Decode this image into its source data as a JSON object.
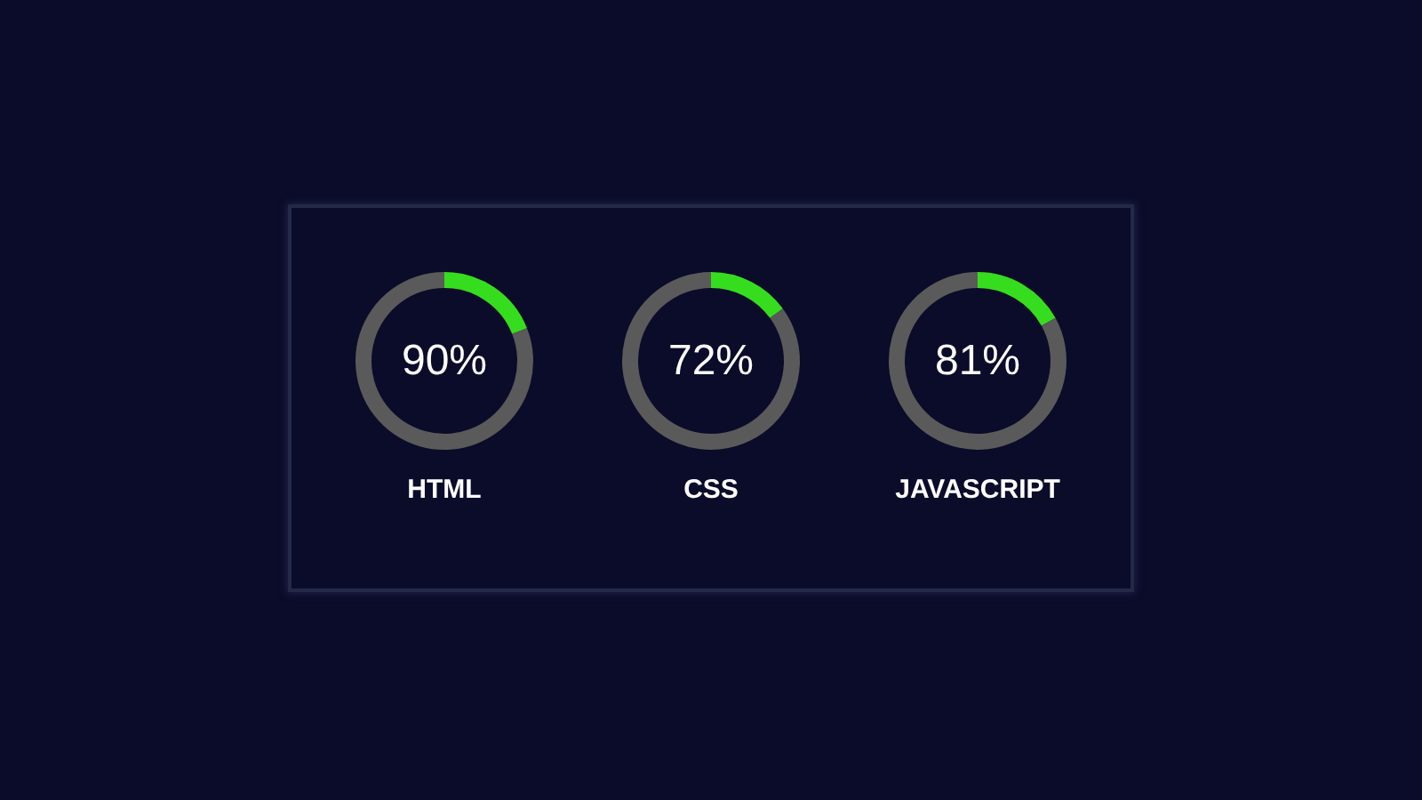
{
  "chart_data": [
    {
      "type": "donut",
      "title": "HTML",
      "categories": [
        null,
        null
      ],
      "values": [
        19,
        81
      ],
      "colors": [
        "#36dd1f",
        "#5a5a5a"
      ],
      "annotations": [
        "90%"
      ]
    },
    {
      "type": "donut",
      "title": "CSS",
      "categories": [
        null,
        null
      ],
      "values": [
        15,
        85
      ],
      "colors": [
        "#36dd1f",
        "#5a5a5a"
      ],
      "annotations": [
        "72%"
      ]
    },
    {
      "type": "donut",
      "title": "JAVASCRIPT",
      "categories": [
        null,
        null
      ],
      "values": [
        17,
        83
      ],
      "colors": [
        "#36dd1f",
        "#5a5a5a"
      ],
      "annotations": [
        "81%"
      ]
    }
  ]
}
